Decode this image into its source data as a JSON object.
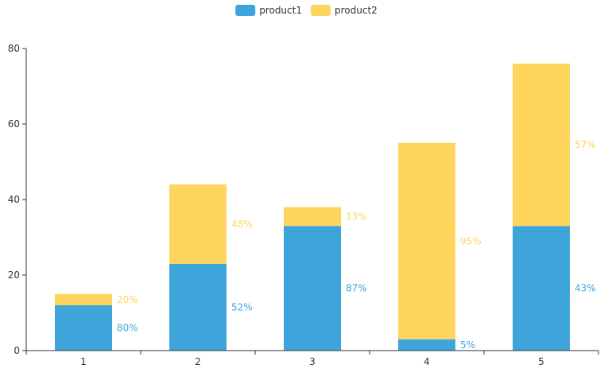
{
  "chart_data": {
    "type": "bar",
    "stacked": true,
    "categories": [
      "1",
      "2",
      "3",
      "4",
      "5"
    ],
    "series": [
      {
        "name": "product1",
        "color": "#3ea5db",
        "values": [
          12,
          23,
          33,
          3,
          33
        ],
        "labels": [
          "80%",
          "52%",
          "87%",
          "5%",
          "43%"
        ]
      },
      {
        "name": "product2",
        "color": "#fed65d",
        "values": [
          3,
          21,
          5,
          52,
          43
        ],
        "labels": [
          "20%",
          "48%",
          "13%",
          "95%",
          "57%"
        ]
      }
    ],
    "ylim": [
      0,
      80
    ],
    "yticks": [
      0,
      20,
      40,
      60,
      80
    ],
    "grid": false,
    "legend": "top-center",
    "title": "",
    "xlabel": "",
    "ylabel": ""
  }
}
